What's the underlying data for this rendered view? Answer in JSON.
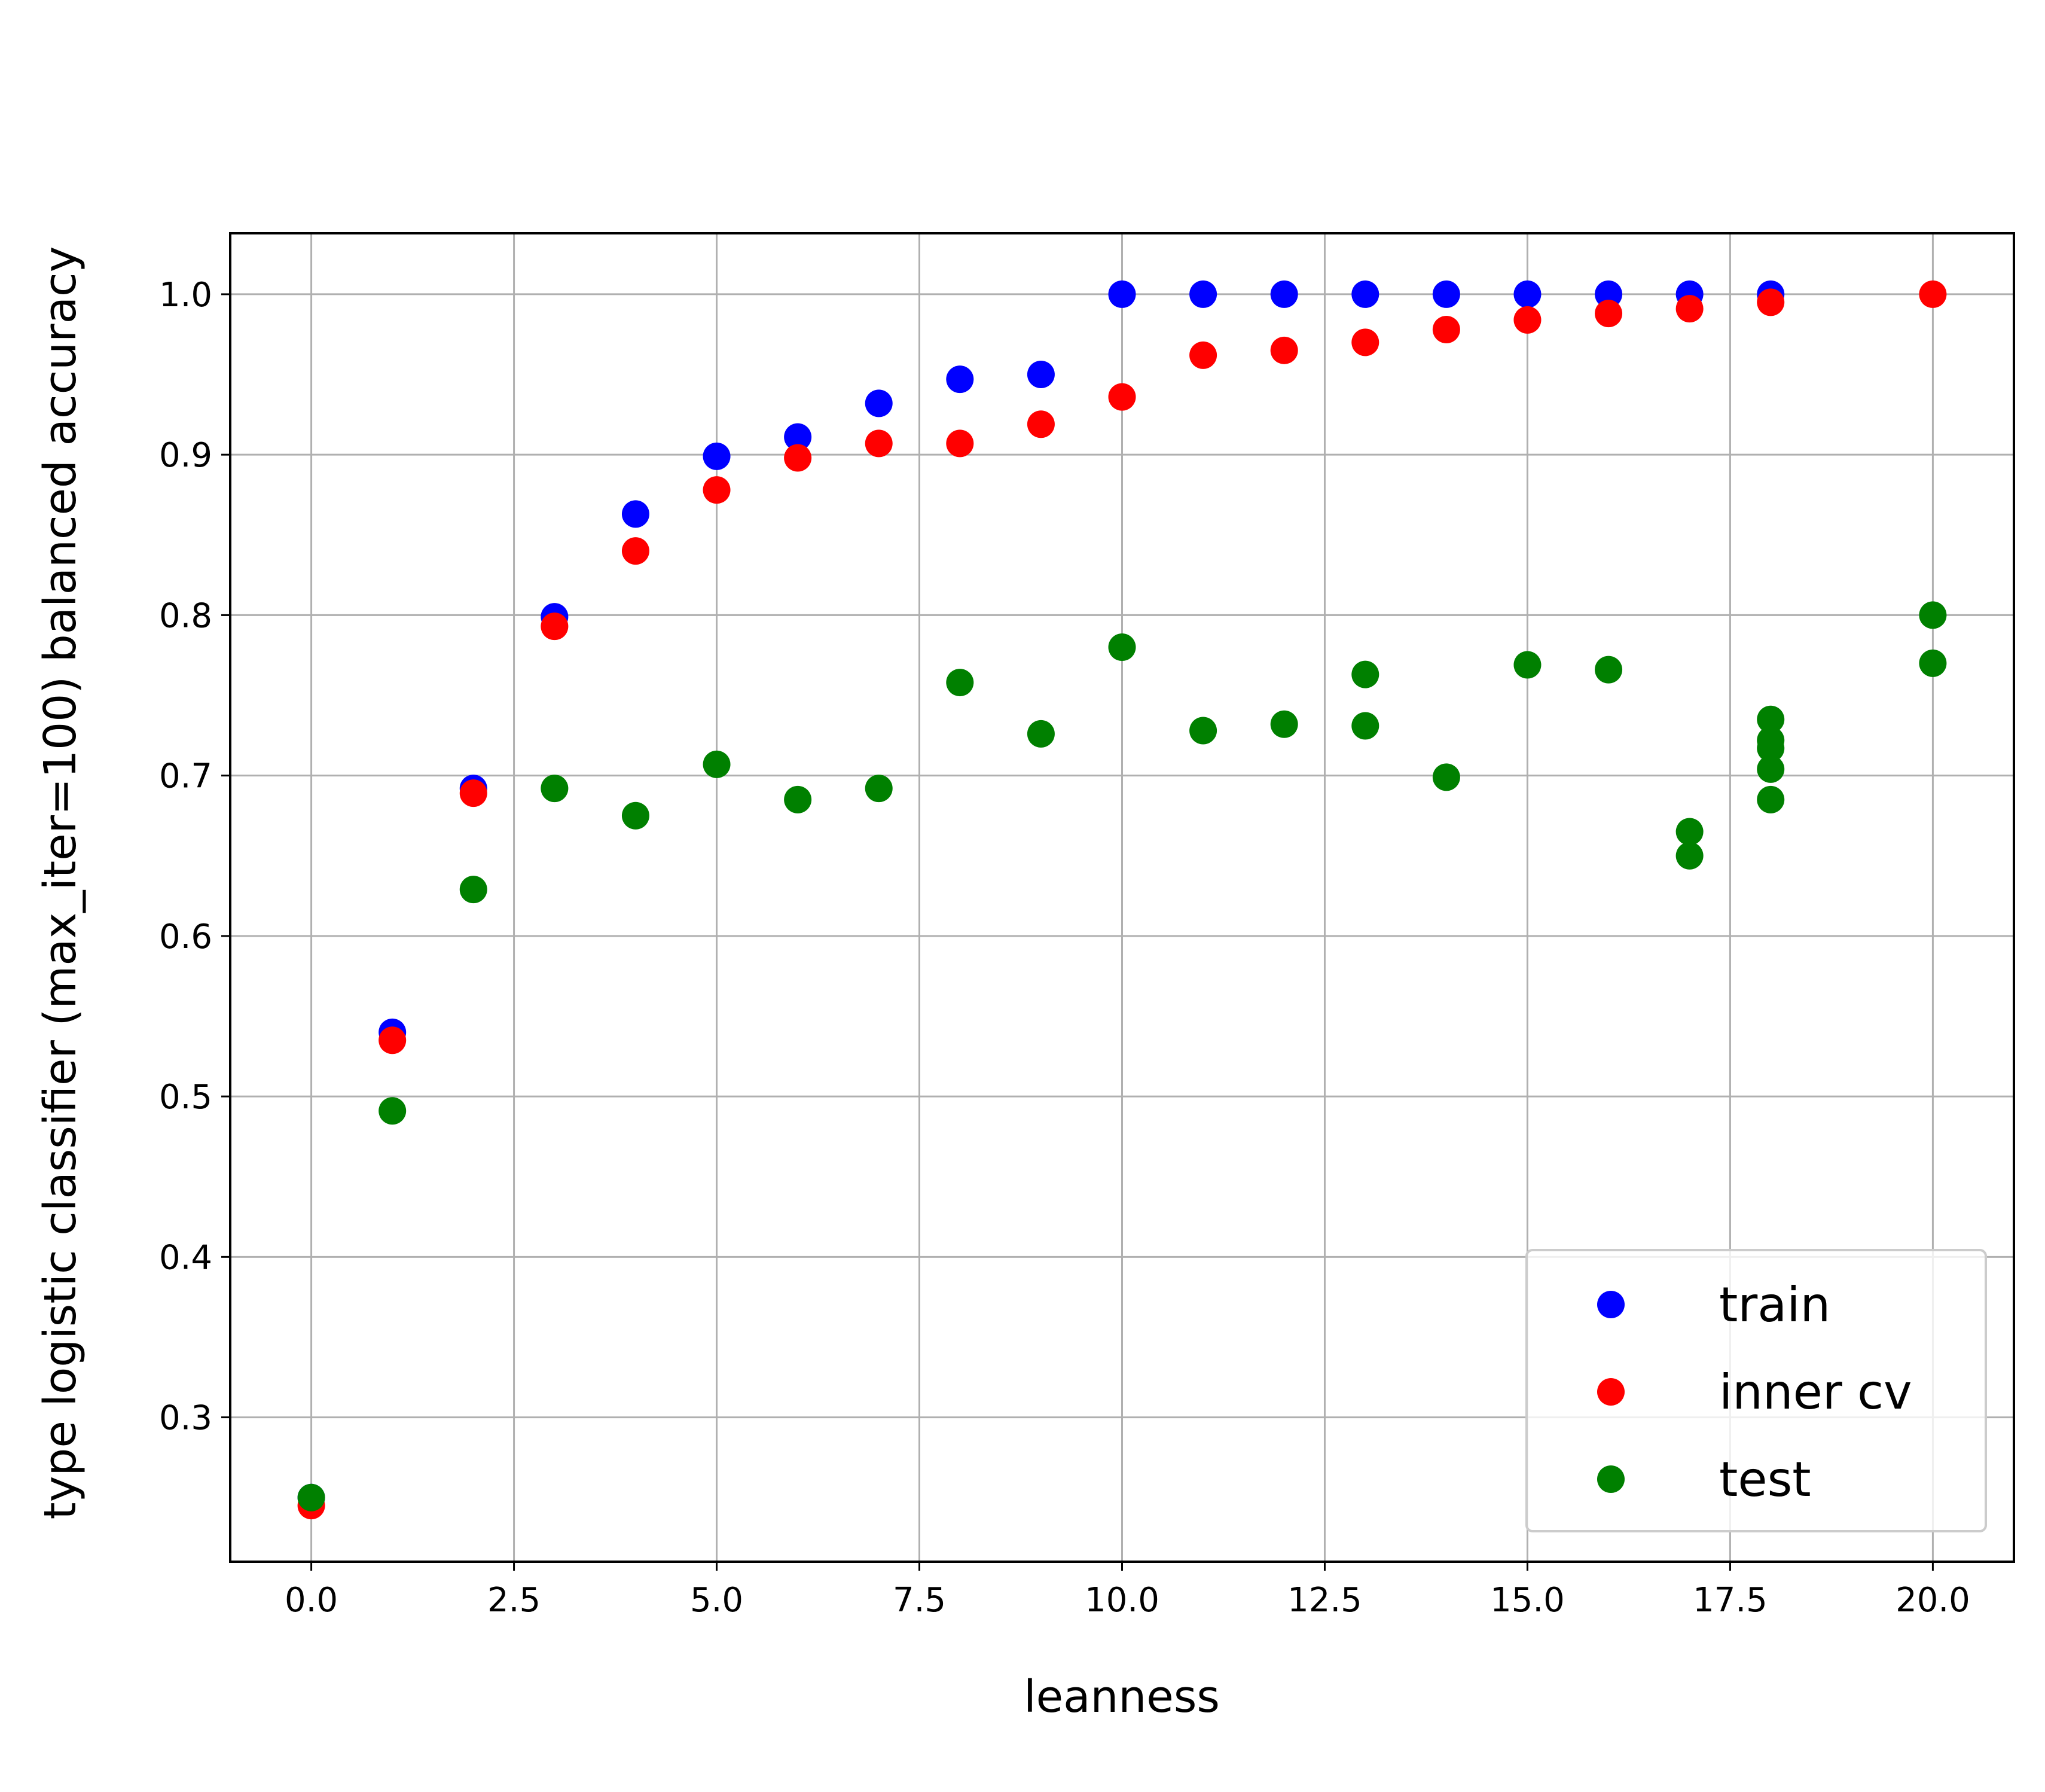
{
  "chart_data": {
    "type": "scatter",
    "xlabel": "leanness",
    "ylabel": "type logistic classifier (max_iter=100) balanced accuracy",
    "xlim": [
      -1.0,
      21.0
    ],
    "ylim": [
      0.21,
      1.038
    ],
    "xticks": [
      0.0,
      2.5,
      5.0,
      7.5,
      10.0,
      12.5,
      15.0,
      17.5,
      20.0
    ],
    "xtick_labels": [
      "0.0",
      "2.5",
      "5.0",
      "7.5",
      "10.0",
      "12.5",
      "15.0",
      "17.5",
      "20.0"
    ],
    "yticks": [
      0.3,
      0.4,
      0.5,
      0.6,
      0.7,
      0.8,
      0.9,
      1.0
    ],
    "ytick_labels": [
      "0.3",
      "0.4",
      "0.5",
      "0.6",
      "0.7",
      "0.8",
      "0.9",
      "1.0"
    ],
    "grid": true,
    "legend": "lower right",
    "series": [
      {
        "name": "train",
        "color": "#0000ff",
        "points": [
          [
            0,
            0.25
          ],
          [
            1,
            0.54
          ],
          [
            2,
            0.692
          ],
          [
            3,
            0.799
          ],
          [
            4,
            0.863
          ],
          [
            5,
            0.899
          ],
          [
            6,
            0.911
          ],
          [
            7,
            0.932
          ],
          [
            8,
            0.947
          ],
          [
            9,
            0.95
          ],
          [
            10,
            1.0
          ],
          [
            11,
            1.0
          ],
          [
            12,
            1.0
          ],
          [
            13,
            1.0
          ],
          [
            14,
            1.0
          ],
          [
            15,
            1.0
          ],
          [
            16,
            1.0
          ],
          [
            17,
            1.0
          ],
          [
            18,
            1.0
          ]
        ]
      },
      {
        "name": "inner cv",
        "color": "#ff0000",
        "points": [
          [
            0,
            0.245
          ],
          [
            1,
            0.535
          ],
          [
            2,
            0.689
          ],
          [
            3,
            0.793
          ],
          [
            4,
            0.84
          ],
          [
            5,
            0.878
          ],
          [
            6,
            0.898
          ],
          [
            7,
            0.907
          ],
          [
            8,
            0.907
          ],
          [
            9,
            0.919
          ],
          [
            10,
            0.936
          ],
          [
            11,
            0.962
          ],
          [
            12,
            0.965
          ],
          [
            13,
            0.97
          ],
          [
            14,
            0.978
          ],
          [
            15,
            0.984
          ],
          [
            16,
            0.988
          ],
          [
            17,
            0.991
          ],
          [
            18,
            0.995
          ],
          [
            20,
            1.0
          ]
        ]
      },
      {
        "name": "test",
        "color": "#008000",
        "points": [
          [
            0,
            0.25
          ],
          [
            1,
            0.491
          ],
          [
            2,
            0.629
          ],
          [
            3,
            0.692
          ],
          [
            4,
            0.675
          ],
          [
            5,
            0.707
          ],
          [
            6,
            0.685
          ],
          [
            7,
            0.692
          ],
          [
            8,
            0.758
          ],
          [
            9,
            0.726
          ],
          [
            10,
            0.78
          ],
          [
            11,
            0.728
          ],
          [
            12,
            0.732
          ],
          [
            13,
            0.731
          ],
          [
            13,
            0.763
          ],
          [
            14,
            0.699
          ],
          [
            15,
            0.769
          ],
          [
            16,
            0.766
          ],
          [
            17,
            0.65
          ],
          [
            17,
            0.665
          ],
          [
            18,
            0.685
          ],
          [
            18,
            0.704
          ],
          [
            18,
            0.717
          ],
          [
            18,
            0.722
          ],
          [
            18,
            0.735
          ],
          [
            20,
            0.77
          ],
          [
            20,
            0.8
          ]
        ]
      }
    ]
  }
}
